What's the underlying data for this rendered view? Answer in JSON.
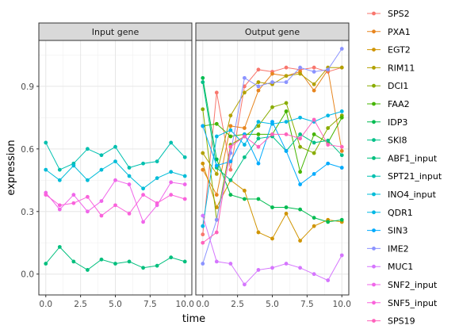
{
  "chart_data": {
    "type": "line",
    "xlabel": "time",
    "ylabel": "expression",
    "xlim": [
      -0.5,
      10.5
    ],
    "ylim": [
      -0.1,
      1.12
    ],
    "x_ticks": [
      0,
      2.5,
      5,
      7.5,
      10
    ],
    "x_tick_labels": [
      "0.0",
      "2.5",
      "5.0",
      "7.5",
      "10.0"
    ],
    "y_ticks": [
      0,
      0.3,
      0.6,
      0.9
    ],
    "y_tick_labels": [
      "0.0",
      "0.3",
      "0.6",
      "0.9"
    ],
    "grid": true,
    "legend_position": "right",
    "x": [
      0,
      1,
      2,
      3,
      4,
      5,
      6,
      7,
      8,
      9,
      10
    ],
    "panels": [
      {
        "title": "Input gene",
        "series": [
          {
            "name": "ABF1_input",
            "color": "#00BF7D",
            "values": [
              0.05,
              0.13,
              0.06,
              0.02,
              0.07,
              0.05,
              0.06,
              0.03,
              0.04,
              0.08,
              0.06
            ]
          },
          {
            "name": "SPT21_input",
            "color": "#00C0AF",
            "values": [
              0.63,
              0.5,
              0.53,
              0.6,
              0.57,
              0.61,
              0.51,
              0.53,
              0.54,
              0.63,
              0.56
            ]
          },
          {
            "name": "INO4_input",
            "color": "#00BCD8",
            "values": [
              0.5,
              0.45,
              0.52,
              0.45,
              0.5,
              0.54,
              0.47,
              0.41,
              0.46,
              0.49,
              0.47
            ]
          },
          {
            "name": "SNF2_input",
            "color": "#F066EA",
            "values": [
              0.39,
              0.31,
              0.38,
              0.3,
              0.35,
              0.45,
              0.43,
              0.25,
              0.33,
              0.44,
              0.43
            ]
          },
          {
            "name": "SNF5_input",
            "color": "#FA62DB",
            "values": [
              0.38,
              0.33,
              0.34,
              0.37,
              0.28,
              0.33,
              0.29,
              0.38,
              0.34,
              0.38,
              0.36
            ]
          }
        ]
      },
      {
        "title": "Output gene",
        "series": [
          {
            "name": "SPS2",
            "color": "#F8766D",
            "values": [
              0.19,
              0.87,
              0.5,
              0.9,
              0.98,
              0.97,
              0.99,
              0.98,
              0.99,
              0.97,
              0.99
            ]
          },
          {
            "name": "PXA1",
            "color": "#E7851E",
            "values": [
              0.5,
              0.38,
              0.71,
              0.7,
              0.88,
              0.96,
              0.95,
              0.97,
              0.88,
              0.98,
              0.59
            ]
          },
          {
            "name": "EGT2",
            "color": "#D09400",
            "values": [
              0.53,
              0.32,
              0.45,
              0.4,
              0.2,
              0.17,
              0.29,
              0.16,
              0.23,
              0.26,
              0.25
            ]
          },
          {
            "name": "RIM11",
            "color": "#B2A100",
            "values": [
              0.58,
              0.48,
              0.76,
              0.87,
              0.92,
              0.91,
              0.95,
              0.96,
              0.91,
              0.99,
              0.99
            ]
          },
          {
            "name": "DCI1",
            "color": "#89AC00",
            "values": [
              0.79,
              0.26,
              0.62,
              0.66,
              0.71,
              0.8,
              0.82,
              0.61,
              0.58,
              0.7,
              0.76
            ]
          },
          {
            "name": "FAA2",
            "color": "#45B500",
            "values": [
              0.71,
              0.72,
              0.66,
              0.67,
              0.67,
              0.67,
              0.78,
              0.49,
              0.67,
              0.63,
              0.75
            ]
          },
          {
            "name": "IDP3",
            "color": "#00BC51",
            "values": [
              0.94,
              0.55,
              0.38,
              0.36,
              0.36,
              0.32,
              0.32,
              0.31,
              0.27,
              0.25,
              0.26
            ]
          },
          {
            "name": "SKI8",
            "color": "#00C087",
            "values": [
              0.92,
              0.51,
              0.45,
              0.56,
              0.65,
              0.66,
              0.59,
              0.67,
              0.63,
              0.64,
              0.57
            ]
          },
          {
            "name": "QDR1",
            "color": "#00B8E5",
            "values": [
              0.23,
              0.66,
              0.69,
              0.62,
              0.73,
              0.72,
              0.73,
              0.75,
              0.73,
              0.76,
              0.78
            ]
          },
          {
            "name": "SIN3",
            "color": "#00ABFD",
            "values": [
              0.71,
              0.52,
              0.54,
              0.67,
              0.53,
              0.73,
              0.59,
              0.43,
              0.48,
              0.53,
              0.51
            ]
          },
          {
            "name": "IME2",
            "color": "#8B93FF",
            "values": [
              0.05,
              0.26,
              0.58,
              0.94,
              0.9,
              0.92,
              0.92,
              0.99,
              0.97,
              0.98,
              1.08
            ]
          },
          {
            "name": "MUC1",
            "color": "#D575FE",
            "values": [
              0.28,
              0.06,
              0.05,
              -0.05,
              0.02,
              0.03,
              0.05,
              0.03,
              0.0,
              -0.03,
              0.09
            ]
          },
          {
            "name": "SPS19",
            "color": "#FF62BC",
            "values": [
              0.15,
              0.2,
              0.61,
              0.66,
              0.61,
              0.67,
              0.67,
              0.65,
              0.74,
              0.62,
              0.61
            ]
          }
        ]
      }
    ],
    "legend": [
      {
        "name": "SPS2",
        "color": "#F8766D"
      },
      {
        "name": "PXA1",
        "color": "#E7851E"
      },
      {
        "name": "EGT2",
        "color": "#D09400"
      },
      {
        "name": "RIM11",
        "color": "#B2A100"
      },
      {
        "name": "DCI1",
        "color": "#89AC00"
      },
      {
        "name": "FAA2",
        "color": "#45B500"
      },
      {
        "name": "IDP3",
        "color": "#00BC51"
      },
      {
        "name": "SKI8",
        "color": "#00C087"
      },
      {
        "name": "ABF1_input",
        "color": "#00BF7D"
      },
      {
        "name": "SPT21_input",
        "color": "#00C0AF"
      },
      {
        "name": "INO4_input",
        "color": "#00BCD8"
      },
      {
        "name": "QDR1",
        "color": "#00B8E5"
      },
      {
        "name": "SIN3",
        "color": "#00ABFD"
      },
      {
        "name": "IME2",
        "color": "#8B93FF"
      },
      {
        "name": "MUC1",
        "color": "#D575FE"
      },
      {
        "name": "SNF2_input",
        "color": "#F066EA"
      },
      {
        "name": "SNF5_input",
        "color": "#FA62DB"
      },
      {
        "name": "SPS19",
        "color": "#FF62BC"
      }
    ]
  }
}
